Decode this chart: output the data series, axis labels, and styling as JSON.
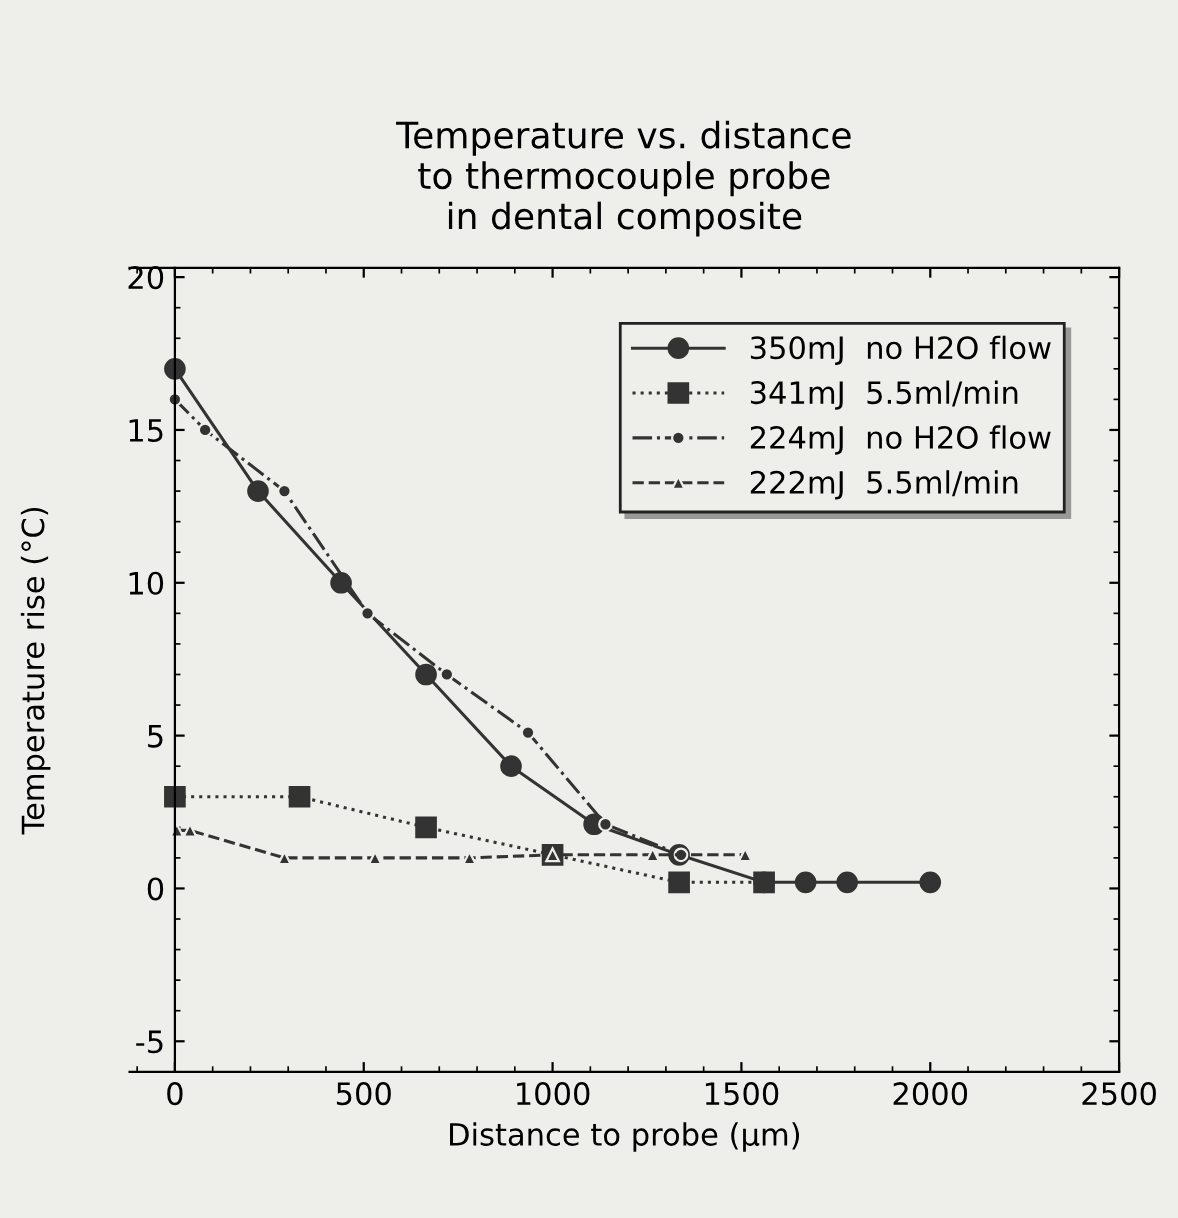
{
  "chart_data": {
    "type": "line",
    "title": "Temperature vs. distance\nto thermocouple probe\nin dental composite",
    "xlabel": "Distance to probe (µm)",
    "ylabel": "Temperature rise (°C)",
    "xlim": [
      -120,
      2500
    ],
    "xticks": [
      0,
      500,
      1000,
      1500,
      2000,
      2500
    ],
    "ylim": [
      -6,
      20.3
    ],
    "yticks": [
      -5,
      0,
      5,
      10,
      15,
      20
    ],
    "grid": false,
    "legend": "top right",
    "series": [
      {
        "name": "350mJ  no H2O flow",
        "color": "#333333",
        "marker": "circle",
        "line_style": "solid",
        "x": [
          0,
          220,
          440,
          665,
          890,
          1110,
          1335,
          1560,
          1670,
          1780,
          2000
        ],
        "values": [
          17,
          13,
          10,
          7,
          4,
          2.1,
          1.1,
          0.2,
          0.2,
          0.2,
          0.2
        ]
      },
      {
        "name": "341mJ  5.5ml/min",
        "color": "#333333",
        "marker": "square",
        "line_style": "dotted",
        "x": [
          0,
          330,
          665,
          1000,
          1335,
          1560
        ],
        "values": [
          3,
          3,
          2,
          1.1,
          0.2,
          0.2
        ]
      },
      {
        "name": "224mJ  no H2O flow",
        "color": "#333333",
        "marker": "circle",
        "line_style": "dashdot",
        "x": [
          0,
          80,
          290,
          510,
          720,
          935,
          1140,
          1340
        ],
        "values": [
          16,
          15,
          13,
          9,
          7,
          5.1,
          2.1,
          1.1
        ]
      },
      {
        "name": "222mJ  5.5ml/min",
        "color": "#333333",
        "marker": "triangle",
        "line_style": "dashed",
        "x": [
          5,
          40,
          290,
          530,
          780,
          1000,
          1265,
          1510
        ],
        "values": [
          1.9,
          1.9,
          1,
          1,
          1,
          1.1,
          1.1,
          1.1
        ]
      }
    ]
  }
}
